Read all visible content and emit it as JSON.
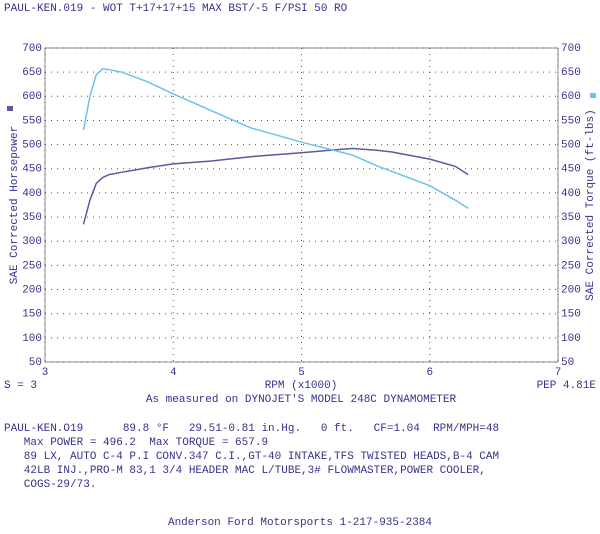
{
  "chart_data": {
    "type": "line",
    "header": "PAUL-KEN.019 - WOT T+17+17+15 MAX BST/-5 F/PSI 50     RO",
    "ylabel": "SAE Corrected Horsepower",
    "y2label": "SAE Corrected Torque (ft-lbs)",
    "xlabel": "RPM (x1000)",
    "smoothing": "S = 3",
    "code": "PEP 4.81E",
    "subtitle": "As measured on DYNOJET'S MODEL 248C DYNAMOMETER",
    "x": [
      3.3,
      3.35,
      3.4,
      3.45,
      3.5,
      3.6,
      3.8,
      4.0,
      4.3,
      4.6,
      5.0,
      5.3,
      5.4,
      5.6,
      5.7,
      6.0,
      6.2,
      6.3
    ],
    "series": [
      {
        "color": "#5a5a9e",
        "axis": "y",
        "values": [
          335,
          385,
          420,
          432,
          438,
          443,
          452,
          460,
          466,
          475,
          483,
          490,
          492,
          488,
          485,
          470,
          455,
          438
        ]
      },
      {
        "color": "#6cc3ea",
        "axis": "y2",
        "values": [
          530,
          600,
          645,
          657,
          655,
          650,
          630,
          605,
          570,
          535,
          505,
          485,
          478,
          455,
          445,
          415,
          385,
          368
        ]
      }
    ],
    "xlim": [
      3,
      7
    ],
    "xticks": [
      3,
      4,
      5,
      6,
      7
    ],
    "ylim": [
      50,
      700
    ],
    "yticks": [
      50,
      100,
      150,
      200,
      250,
      300,
      350,
      400,
      450,
      500,
      550,
      600,
      650,
      700
    ],
    "y2lim": [
      50,
      700
    ],
    "y2ticks": [
      50,
      100,
      150,
      200,
      250,
      300,
      350,
      400,
      450,
      500,
      550,
      600,
      650,
      700
    ],
    "grid": true
  },
  "notes": [
    "PAUL-KEN.O19      89.8 °F   29.51-0.81 in.Hg.   0 ft.   CF=1.04  RPM/MPH=48",
    "   Max POWER = 496.2  Max TORQUE = 657.9",
    "   89 LX, AUTO C-4 P.I CONV.347 C.I.,GT-40 INTAKE,TFS TWISTED HEADS,B-4 CAM",
    "   42LB INJ.,PRO-M 83,1 3/4 HEADER MAC L/TUBE,3# FLOWMASTER,POWER COOLER,",
    "   COGS-29/73."
  ],
  "footer": "Anderson Ford Motorsports 1-217-935-2384"
}
